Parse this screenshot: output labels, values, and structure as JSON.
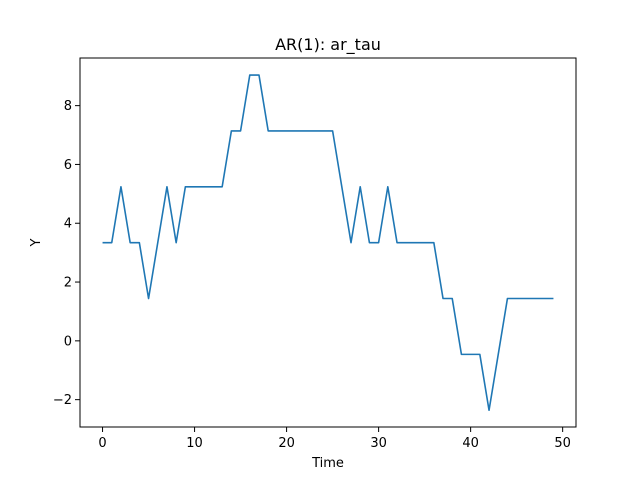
{
  "chart_data": {
    "type": "line",
    "title": "AR(1): ar_tau",
    "xlabel": "Time",
    "ylabel": "Y",
    "xlim": [
      -2.45,
      51.45
    ],
    "ylim": [
      -2.93,
      9.62
    ],
    "xticks": [
      0,
      10,
      20,
      30,
      40,
      50
    ],
    "yticks": [
      -2,
      0,
      2,
      4,
      6,
      8
    ],
    "xtick_labels": [
      "0",
      "10",
      "20",
      "30",
      "40",
      "50"
    ],
    "ytick_labels": [
      "−2",
      "0",
      "2",
      "4",
      "6",
      "8"
    ],
    "grid": false,
    "legend": "none",
    "series": [
      {
        "color": "#1f77b4",
        "x": [
          0,
          1,
          2,
          3,
          4,
          5,
          6,
          7,
          8,
          9,
          10,
          11,
          12,
          13,
          14,
          15,
          16,
          17,
          18,
          19,
          20,
          21,
          22,
          23,
          24,
          25,
          26,
          27,
          28,
          29,
          30,
          31,
          32,
          33,
          34,
          35,
          36,
          37,
          38,
          39,
          40,
          41,
          42,
          43,
          44,
          45,
          46,
          47,
          48,
          49
        ],
        "y": [
          3.34,
          3.34,
          5.24,
          3.34,
          3.34,
          1.44,
          3.34,
          5.24,
          3.34,
          5.24,
          5.24,
          5.24,
          5.24,
          5.24,
          7.14,
          7.14,
          9.04,
          9.04,
          7.14,
          7.14,
          7.14,
          7.14,
          7.14,
          7.14,
          7.14,
          7.14,
          5.24,
          3.34,
          5.24,
          3.34,
          3.34,
          5.24,
          3.34,
          3.34,
          3.34,
          3.34,
          3.34,
          1.44,
          1.44,
          -0.46,
          -0.46,
          -0.46,
          -2.36,
          -0.46,
          1.44,
          1.44,
          1.44,
          1.44,
          1.44,
          1.44
        ]
      }
    ]
  }
}
